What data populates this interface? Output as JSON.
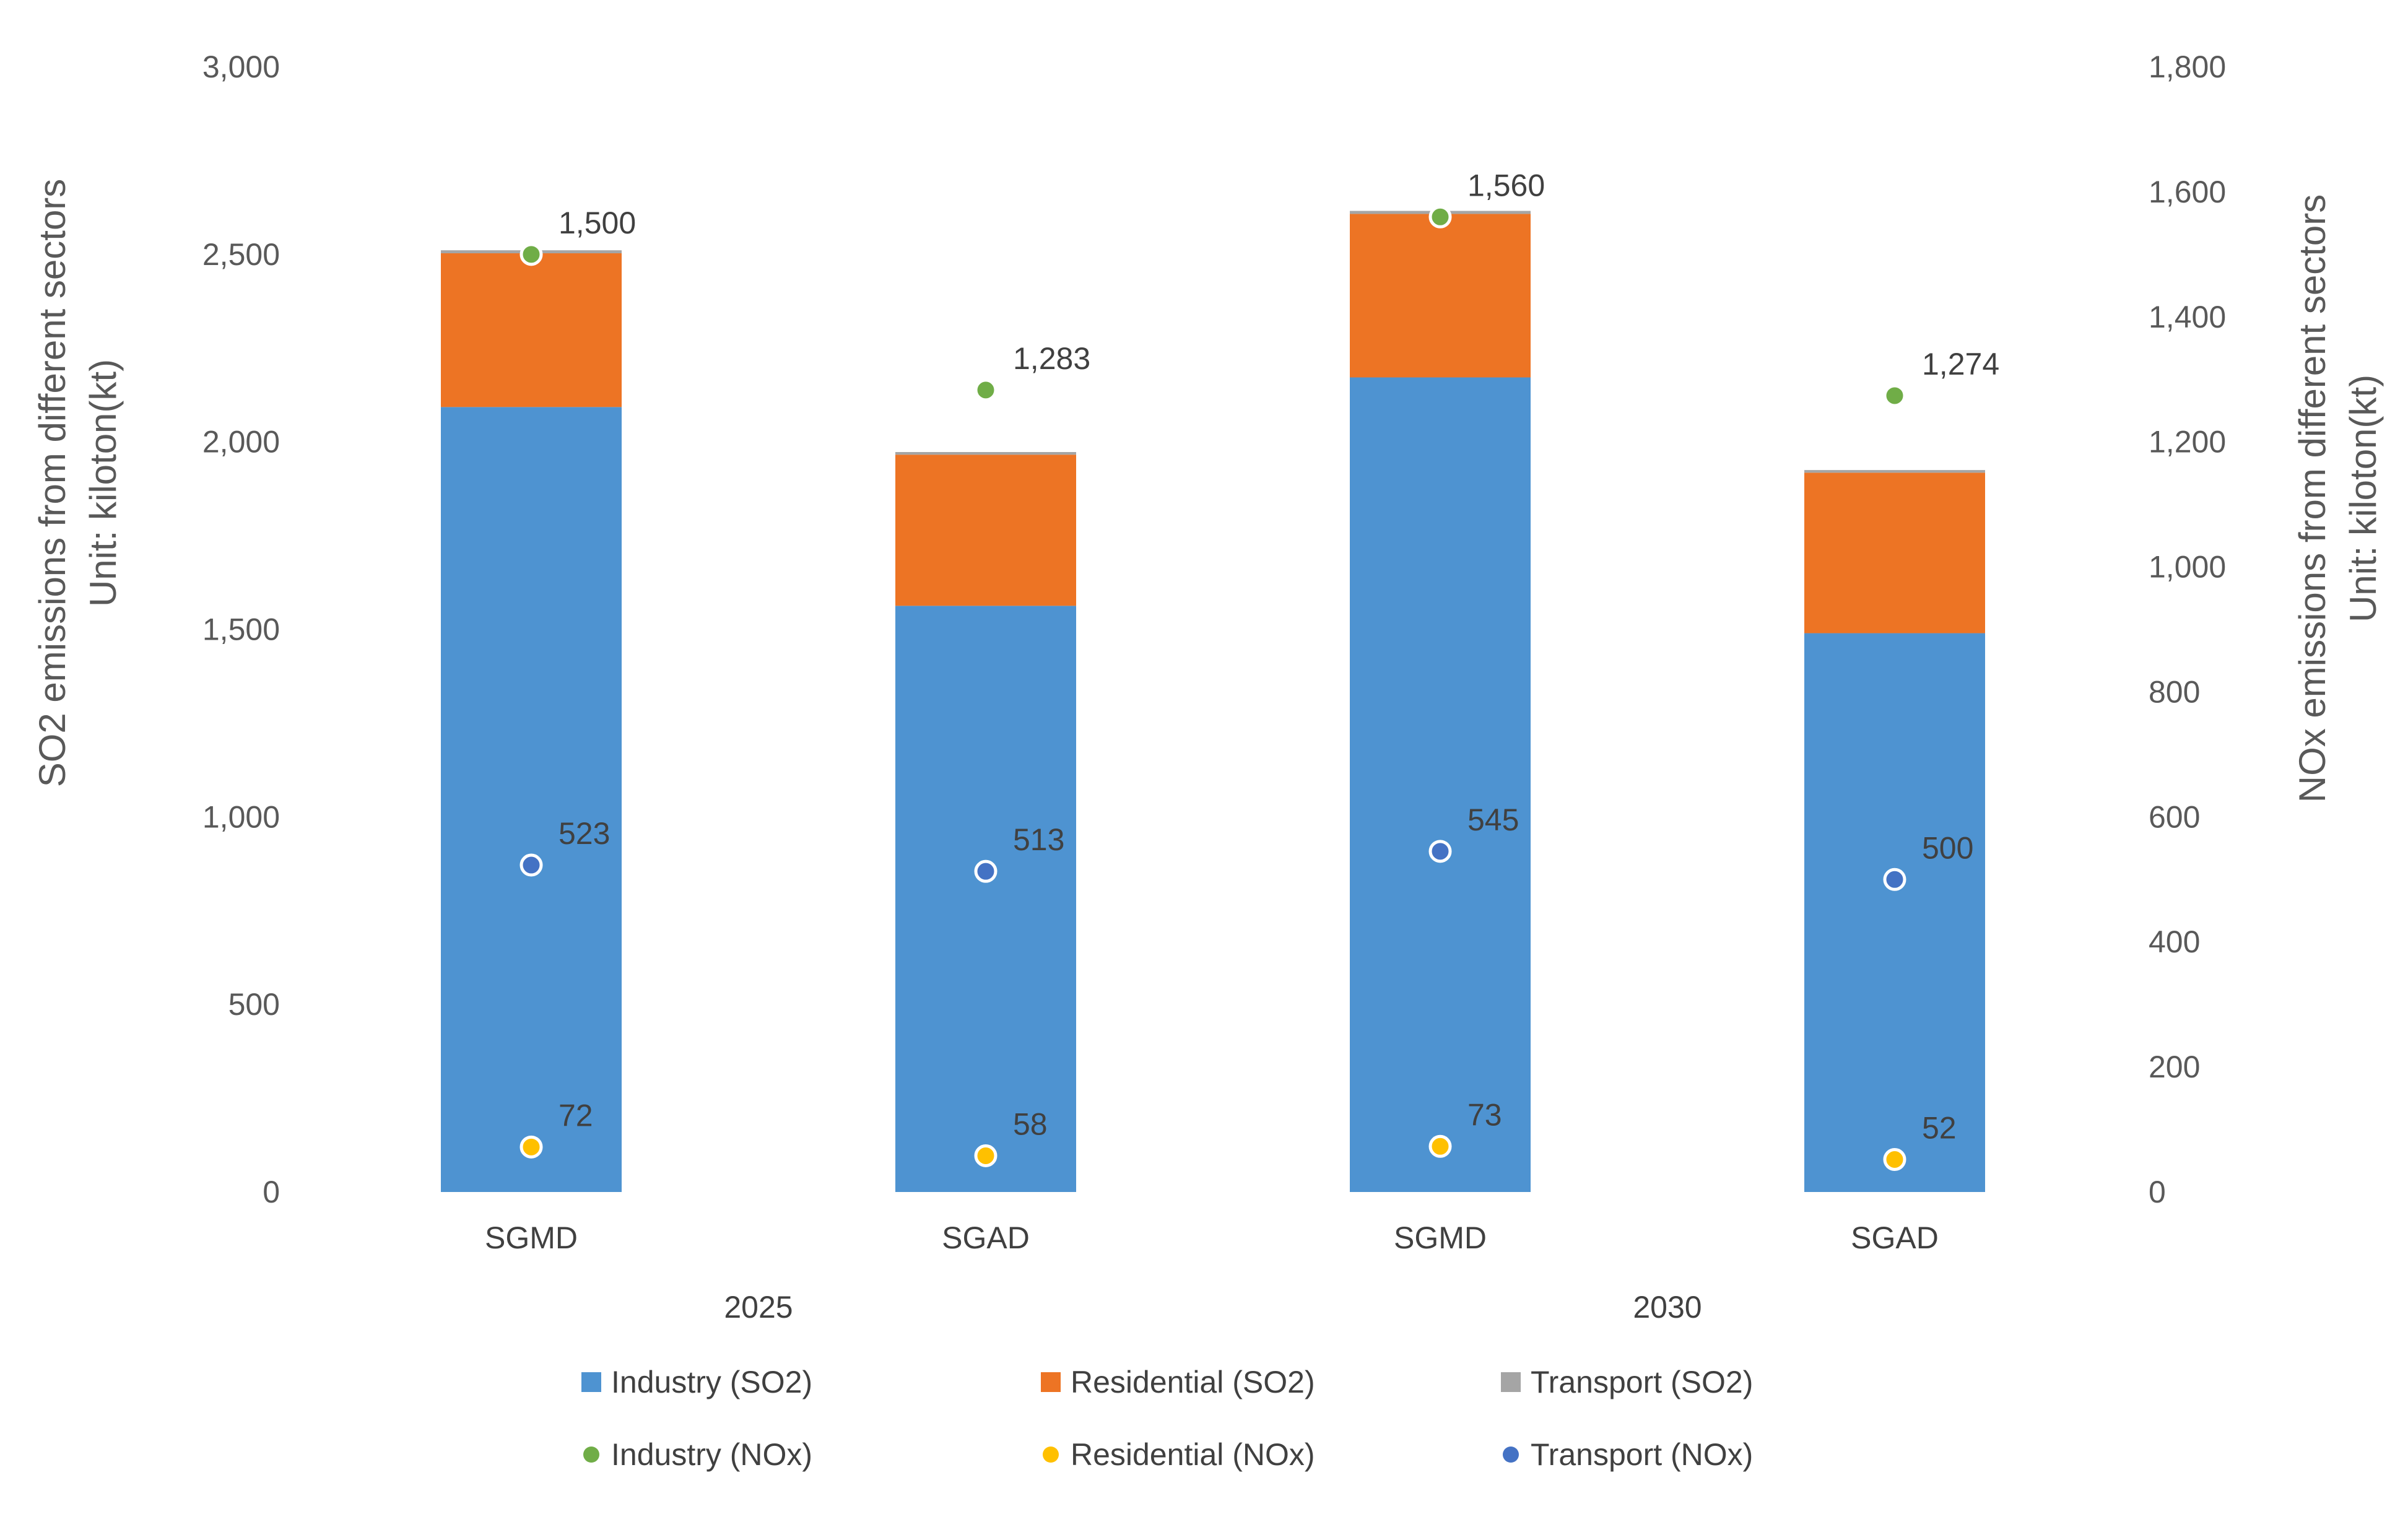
{
  "chart_data": {
    "type": "bar",
    "stacked": true,
    "groups": [
      "2025",
      "2030"
    ],
    "categories": [
      "SGMD",
      "SGAD",
      "SGMD",
      "SGAD"
    ],
    "category_group": [
      "2025",
      "2025",
      "2030",
      "2030"
    ],
    "y_left": {
      "title_line1": "SO2 emissions from different sectors",
      "title_line2": "Unit: kiloton(kt)",
      "ylim": [
        0,
        3000
      ],
      "ticks": [
        0,
        500,
        1000,
        1500,
        2000,
        2500,
        3000
      ],
      "tick_labels": [
        "0",
        "500",
        "1,000",
        "1,500",
        "2,000",
        "2,500",
        "3,000"
      ]
    },
    "y_right": {
      "title_line1": "NOx emissions from different sectors",
      "title_line2": "Unit: kiloton(kt)",
      "ylim": [
        0,
        1800
      ],
      "ticks": [
        0,
        200,
        400,
        600,
        800,
        1000,
        1200,
        1400,
        1600,
        1800
      ],
      "tick_labels": [
        "0",
        "200",
        "400",
        "600",
        "800",
        "1,000",
        "1,200",
        "1,400",
        "1,600",
        "1,800"
      ]
    },
    "bar_series": [
      {
        "name": "Industry (SO2)",
        "axis": "left",
        "color": "#4e93d1",
        "values": [
          2093,
          1563,
          2172,
          1490
        ]
      },
      {
        "name": "Residential (SO2)",
        "axis": "left",
        "color": "#ed7424",
        "values": [
          410,
          403,
          436,
          428
        ]
      },
      {
        "name": "Transport (SO2)",
        "axis": "left",
        "color": "#a5a5a5",
        "values": [
          8,
          7,
          8,
          7
        ]
      }
    ],
    "point_series": [
      {
        "name": "Industry (NOx)",
        "axis": "right",
        "color": "#70ad47",
        "values": [
          1500,
          1283,
          1560,
          1274
        ],
        "labels": [
          "1,500",
          "1,283",
          "1,560",
          "1,274"
        ]
      },
      {
        "name": "Residential (NOx)",
        "axis": "right",
        "color": "#ffc000",
        "values": [
          72,
          58,
          73,
          52
        ],
        "labels": [
          "72",
          "58",
          "73",
          "52"
        ]
      },
      {
        "name": "Transport (NOx)",
        "axis": "right",
        "color": "#4472c4",
        "values": [
          523,
          513,
          545,
          500
        ],
        "labels": [
          "523",
          "513",
          "545",
          "500"
        ]
      }
    ],
    "legend": {
      "position": "bottom",
      "entries": [
        {
          "label": "Industry (SO2)",
          "marker": "square",
          "color": "#4e93d1"
        },
        {
          "label": "Residential (SO2)",
          "marker": "square",
          "color": "#ed7424"
        },
        {
          "label": "Transport (SO2)",
          "marker": "square",
          "color": "#a5a5a5"
        },
        {
          "label": "Industry (NOx)",
          "marker": "circle",
          "color": "#70ad47"
        },
        {
          "label": "Residential (NOx)",
          "marker": "circle",
          "color": "#ffc000"
        },
        {
          "label": "Transport (NOx)",
          "marker": "circle",
          "color": "#4472c4"
        }
      ]
    },
    "grid": false
  }
}
